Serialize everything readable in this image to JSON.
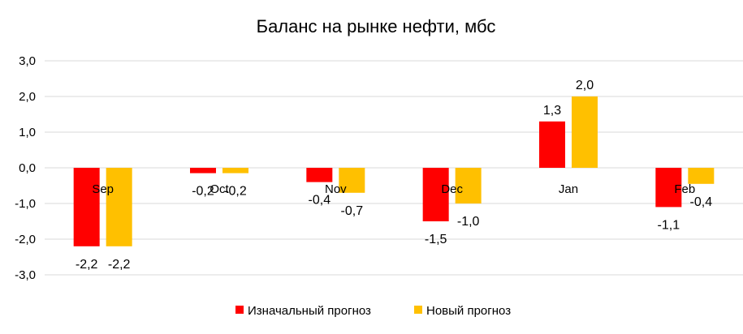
{
  "chart_data": {
    "type": "bar",
    "title": "Баланс на рынке нефти, мбс",
    "xlabel": "",
    "ylabel": "",
    "categories": [
      "Sep",
      "Oct",
      "Nov",
      "Dec",
      "Jan",
      "Feb"
    ],
    "series": [
      {
        "name": "Изначальный прогноз",
        "color": "#ff0000",
        "values": [
          -2.2,
          -0.15,
          -0.4,
          -1.5,
          1.3,
          -1.1
        ],
        "labels": [
          "-2,2",
          "-0,2",
          "-0,4",
          "-1,5",
          "1,3",
          "-1,1"
        ]
      },
      {
        "name": "Новый прогноз",
        "color": "#ffc000",
        "values": [
          -2.2,
          -0.15,
          -0.7,
          -1.0,
          2.0,
          -0.45
        ],
        "labels": [
          "-2,2",
          "-0,2",
          "-0,7",
          "-1,0",
          "2,0",
          "-0,4"
        ]
      }
    ],
    "ylim": [
      -3,
      3
    ],
    "yticks": [
      3,
      2,
      1,
      0,
      -1,
      -2,
      -3
    ],
    "ytick_labels": [
      "3,0",
      "2,0",
      "1,0",
      "0,0",
      "-1,0",
      "-2,0",
      "-3,0"
    ],
    "grid": true,
    "legend_position": "bottom"
  }
}
